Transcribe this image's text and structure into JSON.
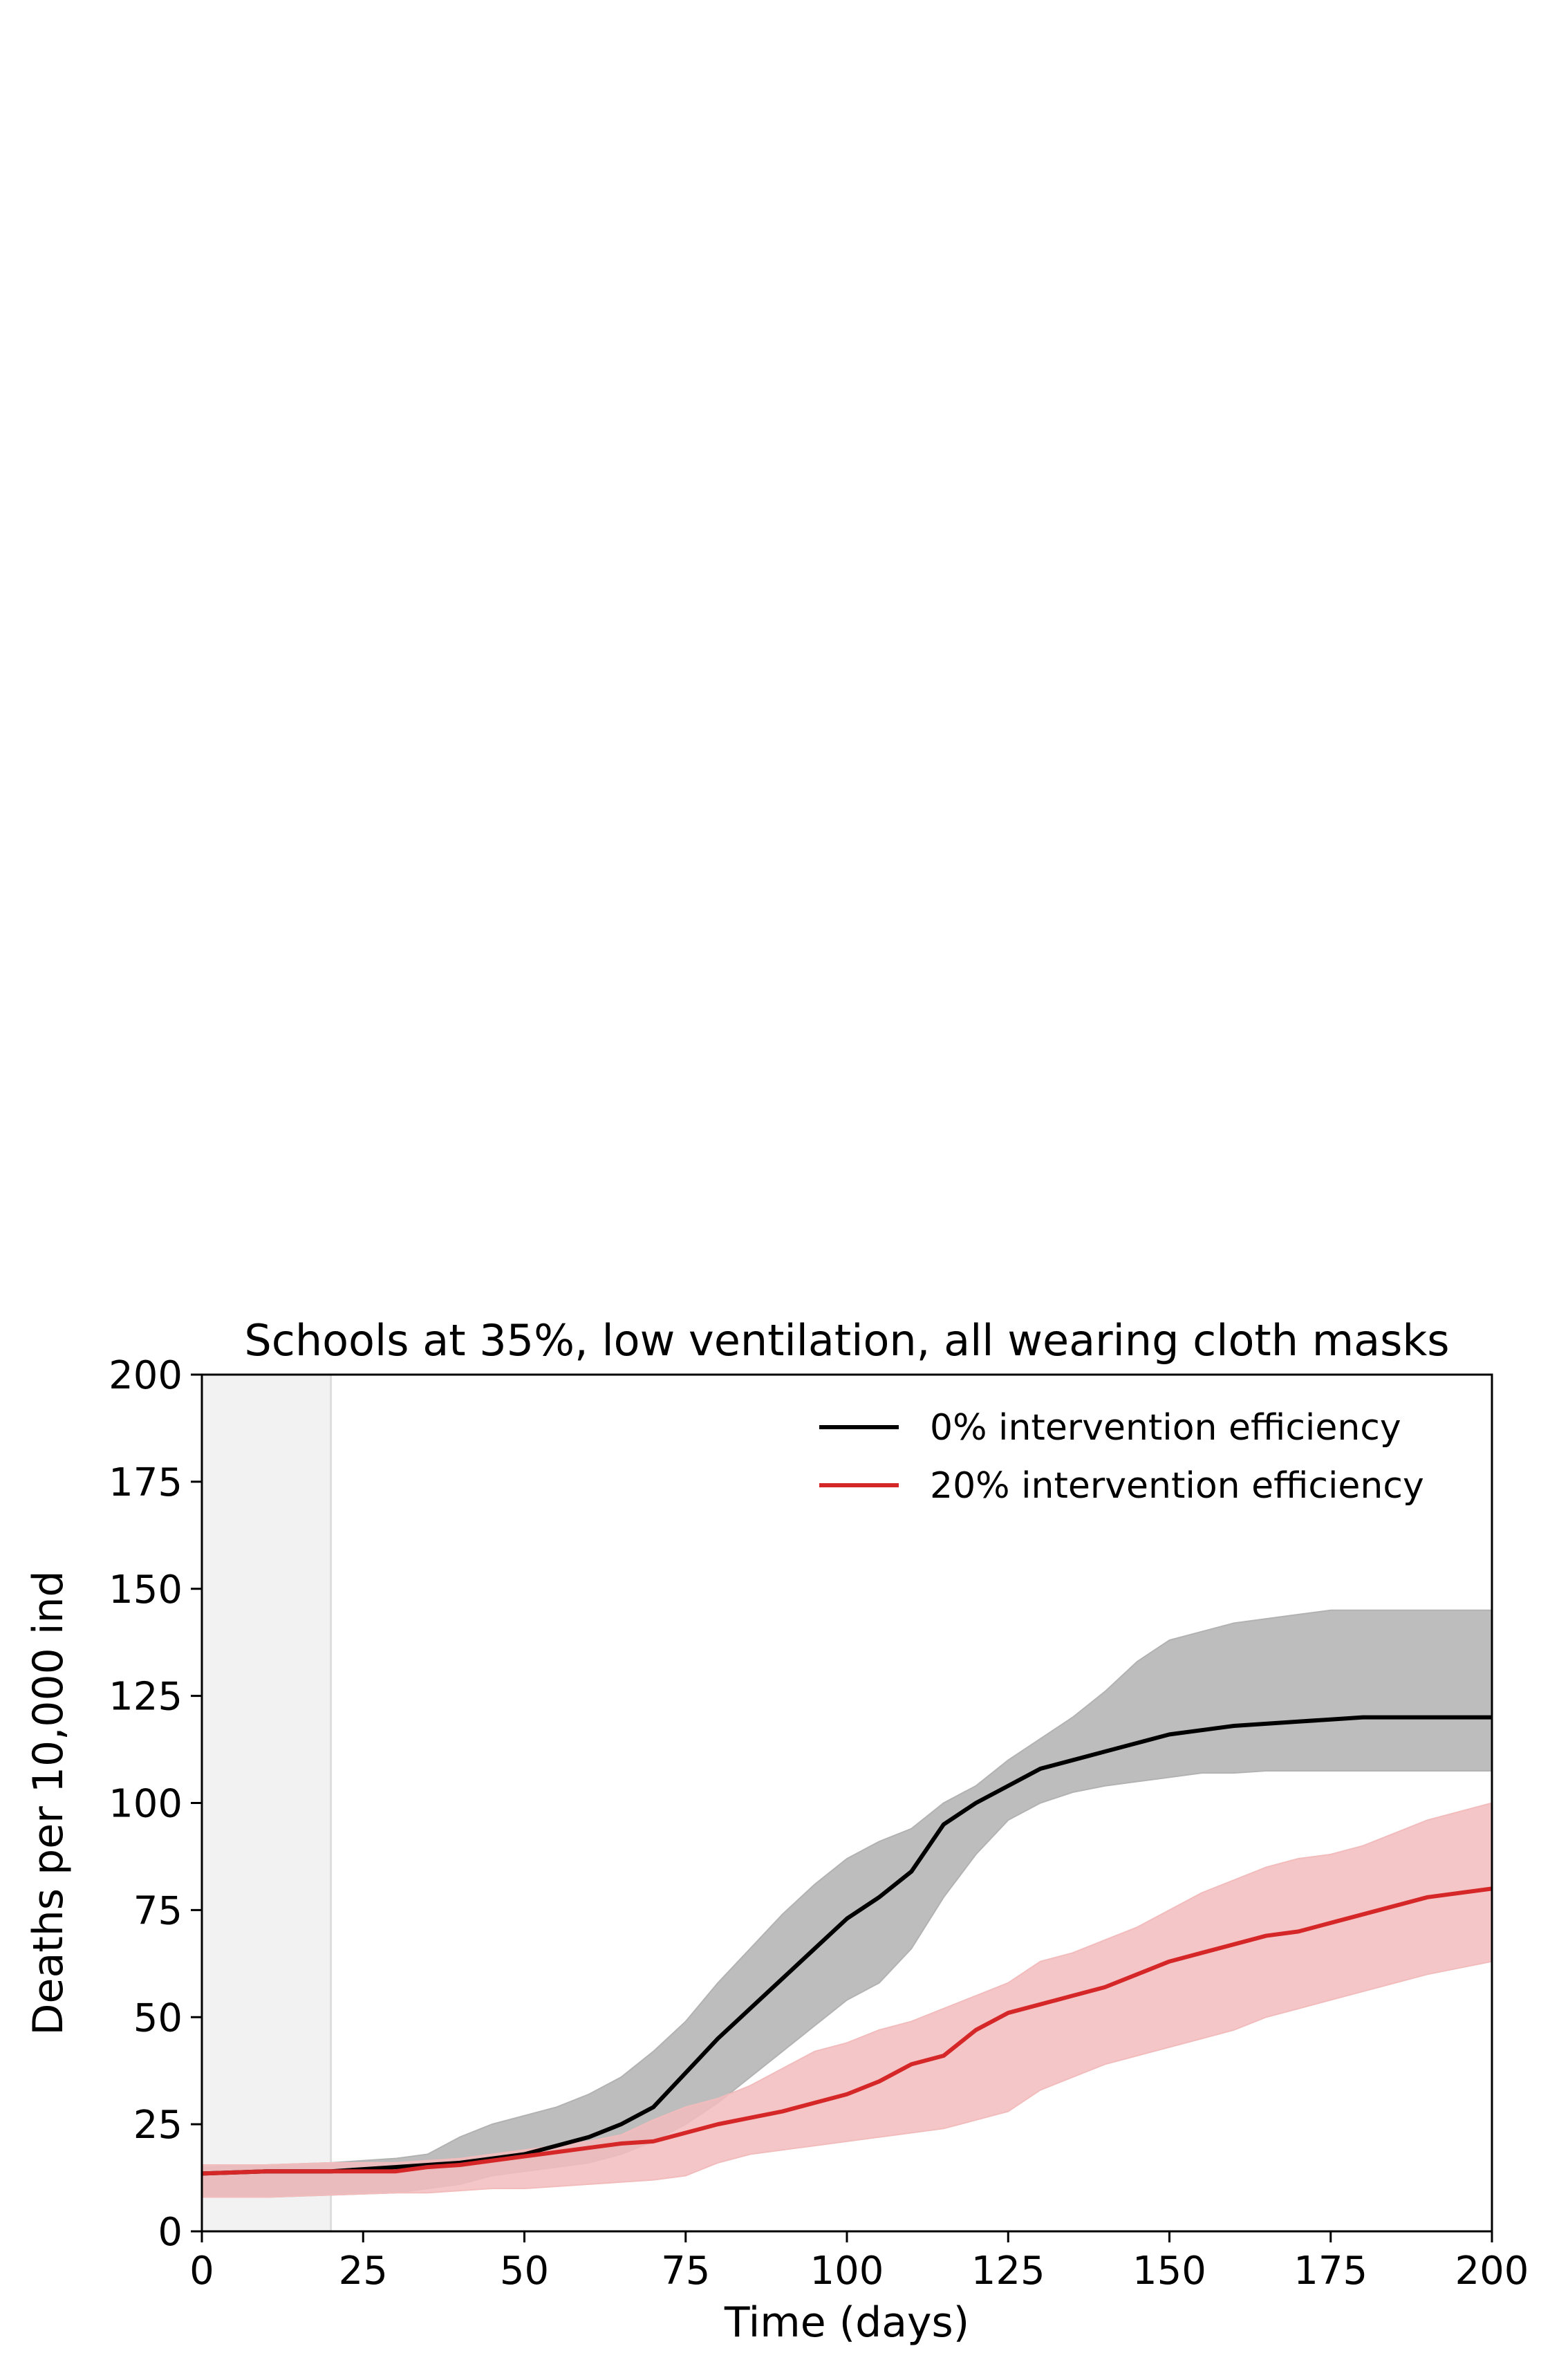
{
  "chart_data": {
    "type": "line",
    "title": "Schools at 35%, low ventilation, all wearing cloth masks",
    "xlabel": "Time (days)",
    "ylabel": "Deaths per 10,000 ind",
    "xlim": [
      0,
      200
    ],
    "ylim": [
      0,
      200
    ],
    "xticks": [
      0,
      25,
      50,
      75,
      100,
      125,
      150,
      175,
      200
    ],
    "yticks": [
      0,
      25,
      50,
      75,
      100,
      125,
      150,
      175,
      200
    ],
    "grid": false,
    "legend_position": "top-right",
    "shaded_region": {
      "x_start": 0,
      "x_end": 20,
      "color": "#f2f2f2"
    },
    "series": [
      {
        "name": "0% intervention efficiency",
        "color": "#000000",
        "band_color": "#b2b2b2",
        "x": [
          0,
          10,
          20,
          30,
          35,
          40,
          45,
          50,
          55,
          60,
          65,
          70,
          75,
          80,
          85,
          90,
          95,
          100,
          105,
          110,
          115,
          120,
          125,
          130,
          135,
          140,
          145,
          150,
          155,
          160,
          165,
          170,
          175,
          180,
          190,
          200
        ],
        "y": [
          13.5,
          14,
          14,
          15,
          15.5,
          16,
          17,
          18,
          20,
          22,
          25,
          29,
          37,
          45,
          52,
          59,
          66,
          73,
          78,
          84,
          95,
          100,
          104,
          108,
          110,
          112,
          114,
          116,
          117,
          118,
          118.5,
          119,
          119.5,
          120,
          120,
          120
        ],
        "upper": [
          15,
          15.5,
          16,
          17,
          18,
          22,
          25,
          27,
          29,
          32,
          36,
          42,
          49,
          58,
          66,
          74,
          81,
          87,
          91,
          94,
          100,
          104,
          110,
          115,
          120,
          126,
          133,
          138,
          140,
          142,
          143,
          144,
          145,
          145,
          145,
          145
        ],
        "lower": [
          8,
          8,
          8.5,
          9,
          10,
          11,
          13,
          14,
          15,
          16,
          18,
          21,
          25,
          30,
          36,
          42,
          48,
          54,
          58,
          66,
          78,
          88,
          96,
          100,
          102.5,
          104,
          105,
          106,
          107,
          107,
          107.5,
          107.5,
          107.5,
          107.5,
          107.5,
          107.5
        ]
      },
      {
        "name": "20% intervention efficiency",
        "color": "#d62728",
        "band_color": "#f2bcbd",
        "x": [
          0,
          10,
          20,
          30,
          35,
          40,
          45,
          50,
          55,
          60,
          65,
          70,
          75,
          80,
          85,
          90,
          95,
          100,
          105,
          110,
          115,
          120,
          125,
          130,
          135,
          140,
          145,
          150,
          155,
          160,
          165,
          170,
          175,
          180,
          190,
          200
        ],
        "y": [
          13.5,
          14,
          14,
          14,
          15,
          15.5,
          16.5,
          17.5,
          18.5,
          19.5,
          20.5,
          21,
          23,
          25,
          26.5,
          28,
          30,
          32,
          35,
          39,
          41,
          47,
          51,
          53,
          55,
          57,
          60,
          63,
          65,
          67,
          69,
          70,
          72,
          74,
          78,
          80
        ],
        "upper": [
          15.5,
          15.5,
          16,
          16,
          16.5,
          17,
          18,
          19,
          20,
          21,
          22.5,
          26,
          29,
          31,
          34,
          38,
          42,
          44,
          47,
          49,
          52,
          55,
          58,
          63,
          65,
          68,
          71,
          75,
          79,
          82,
          85,
          87,
          88,
          90,
          96,
          100
        ],
        "lower": [
          8,
          8,
          8.5,
          9,
          9,
          9.5,
          10,
          10,
          10.5,
          11,
          11.5,
          12,
          13,
          16,
          18,
          19,
          20,
          21,
          22,
          23,
          24,
          26,
          28,
          33,
          36,
          39,
          41,
          43,
          45,
          47,
          50,
          52,
          54,
          56,
          60,
          63
        ]
      }
    ]
  }
}
